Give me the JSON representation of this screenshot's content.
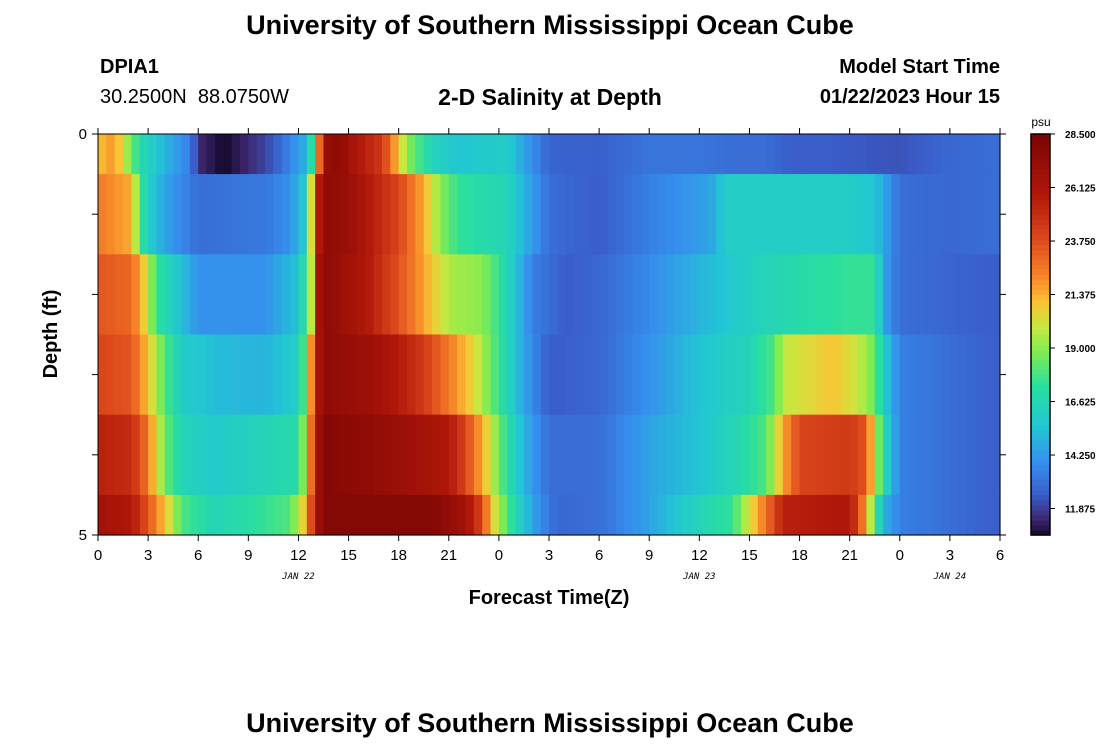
{
  "header": {
    "title": "University of Southern Mississippi Ocean Cube",
    "station_id": "DPIA1",
    "station_coords": "30.2500N  88.0750W",
    "plot_title": "2-D Salinity at Depth",
    "start_label": "Model Start Time",
    "start_value": "01/22/2023 Hour 15"
  },
  "footer": {
    "title": "University of Southern Mississippi Ocean Cube"
  },
  "chart_data": {
    "type": "heatmap",
    "title": "2-D Salinity at Depth",
    "xlabel": "Forecast Time(Z)",
    "ylabel": "Depth (ft)",
    "x_tick_labels": [
      "0",
      "3",
      "6",
      "9",
      "12",
      "15",
      "18",
      "21",
      "0",
      "3",
      "6",
      "9",
      "12",
      "15",
      "18",
      "21",
      "0",
      "3",
      "6"
    ],
    "date_labels": [
      {
        "label": "JAN 22",
        "at_hour": 12
      },
      {
        "label": "JAN 23",
        "at_hour": 36
      },
      {
        "label": "JAN 24",
        "at_hour": 51
      }
    ],
    "x_range_hours": [
      0,
      54
    ],
    "y_tick_labels": [
      "0",
      "5"
    ],
    "ylim": [
      0,
      5
    ],
    "depth_bands": [
      0.5,
      1.5,
      2.5,
      3.5,
      4.5,
      5.0
    ],
    "colorbar": {
      "unit": "psu",
      "min": 10.7,
      "max": 28.5,
      "tick_labels": [
        "28.500",
        "26.125",
        "23.750",
        "21.375",
        "19.000",
        "16.625",
        "14.250",
        "11.875"
      ],
      "tick_values": [
        28.5,
        26.125,
        23.75,
        21.375,
        19.0,
        16.625,
        14.25,
        11.875
      ]
    },
    "profiles": [
      {
        "depth_band": 1,
        "keys": [
          [
            0,
            21
          ],
          [
            1,
            22
          ],
          [
            1.5,
            20
          ],
          [
            2.5,
            17
          ],
          [
            4,
            15
          ],
          [
            5.5,
            13.5
          ],
          [
            6,
            11.5
          ],
          [
            7,
            11
          ],
          [
            7.5,
            10.7
          ],
          [
            8.5,
            11.2
          ],
          [
            10,
            12
          ],
          [
            11,
            13
          ],
          [
            12.5,
            15
          ],
          [
            13,
            19
          ],
          [
            13.5,
            27
          ],
          [
            14.5,
            27.5
          ],
          [
            15.5,
            26
          ],
          [
            17,
            24.5
          ],
          [
            18,
            21
          ],
          [
            18.5,
            19
          ],
          [
            20,
            16.5
          ],
          [
            21.5,
            15.5
          ],
          [
            23,
            15.8
          ],
          [
            24.5,
            16
          ],
          [
            25.5,
            14.5
          ],
          [
            27,
            12.7
          ],
          [
            30,
            12.6
          ],
          [
            33,
            13.2
          ],
          [
            36,
            13.2
          ],
          [
            38,
            13
          ],
          [
            40,
            13
          ],
          [
            41.5,
            12.5
          ],
          [
            44,
            12.5
          ],
          [
            48,
            12.3
          ],
          [
            51,
            12.8
          ],
          [
            54,
            13
          ]
        ]
      },
      {
        "depth_band": 2,
        "keys": [
          [
            0,
            22.5
          ],
          [
            2,
            21.5
          ],
          [
            2.5,
            18
          ],
          [
            3,
            16
          ],
          [
            4,
            14.5
          ],
          [
            6,
            13
          ],
          [
            10,
            13.3
          ],
          [
            11.5,
            14
          ],
          [
            12.5,
            16
          ],
          [
            13,
            24.5
          ],
          [
            13.5,
            27.5
          ],
          [
            15,
            27
          ],
          [
            18,
            24
          ],
          [
            19.5,
            21.5
          ],
          [
            20.5,
            19
          ],
          [
            21.5,
            17.5
          ],
          [
            23,
            17
          ],
          [
            24.5,
            16.5
          ],
          [
            25.5,
            15
          ],
          [
            27,
            13
          ],
          [
            30,
            12.5
          ],
          [
            33,
            13.5
          ],
          [
            36,
            14.3
          ],
          [
            37,
            14.8
          ],
          [
            37.5,
            16
          ],
          [
            41,
            16
          ],
          [
            45,
            16
          ],
          [
            46.5,
            15.5
          ],
          [
            48,
            13
          ],
          [
            51,
            12.8
          ],
          [
            54,
            13
          ]
        ]
      },
      {
        "depth_band": 3,
        "keys": [
          [
            0,
            23.5
          ],
          [
            2,
            23
          ],
          [
            3,
            20
          ],
          [
            3.5,
            17.5
          ],
          [
            4.5,
            16
          ],
          [
            6,
            14
          ],
          [
            10,
            14
          ],
          [
            12,
            15.5
          ],
          [
            12.7,
            19
          ],
          [
            13.2,
            26.5
          ],
          [
            13.7,
            27.5
          ],
          [
            16,
            26
          ],
          [
            18.5,
            23
          ],
          [
            20,
            21
          ],
          [
            21,
            19.5
          ],
          [
            23,
            19
          ],
          [
            24,
            17.5
          ],
          [
            25,
            15.5
          ],
          [
            26,
            13.5
          ],
          [
            28,
            12.5
          ],
          [
            30,
            12.8
          ],
          [
            33,
            13.8
          ],
          [
            36,
            15
          ],
          [
            40,
            16.5
          ],
          [
            42,
            17
          ],
          [
            45,
            17.5
          ],
          [
            46.5,
            17.5
          ],
          [
            47,
            14.5
          ],
          [
            48,
            13
          ],
          [
            54,
            12.5
          ]
        ]
      },
      {
        "depth_band": 4,
        "keys": [
          [
            0,
            24
          ],
          [
            2,
            23.5
          ],
          [
            3,
            21
          ],
          [
            4,
            18
          ],
          [
            5,
            16
          ],
          [
            7,
            15.2
          ],
          [
            10,
            15
          ],
          [
            12,
            16
          ],
          [
            12.6,
            20
          ],
          [
            13,
            25.5
          ],
          [
            13.5,
            27.5
          ],
          [
            17,
            26.5
          ],
          [
            19,
            25
          ],
          [
            21,
            22.5
          ],
          [
            22.5,
            20.5
          ],
          [
            23.5,
            18.5
          ],
          [
            24.5,
            16.5
          ],
          [
            25.5,
            14.5
          ],
          [
            27,
            12.5
          ],
          [
            30,
            12.8
          ],
          [
            33,
            14
          ],
          [
            36,
            15.5
          ],
          [
            39,
            16.5
          ],
          [
            40.5,
            18
          ],
          [
            41,
            19.8
          ],
          [
            44,
            21
          ],
          [
            45.5,
            20
          ],
          [
            46.5,
            18.5
          ],
          [
            47,
            16
          ],
          [
            48,
            13.5
          ],
          [
            54,
            12.5
          ]
        ]
      },
      {
        "depth_band": 5,
        "keys": [
          [
            0,
            25.5
          ],
          [
            2,
            25
          ],
          [
            3,
            22.5
          ],
          [
            4,
            18.5
          ],
          [
            5,
            16.5
          ],
          [
            7,
            15.8
          ],
          [
            10,
            16.5
          ],
          [
            12,
            17
          ],
          [
            12.6,
            21
          ],
          [
            13,
            26
          ],
          [
            13.5,
            28
          ],
          [
            18,
            27
          ],
          [
            21,
            26
          ],
          [
            22,
            24
          ],
          [
            23,
            21.5
          ],
          [
            24,
            18.5
          ],
          [
            25,
            16
          ],
          [
            26,
            14.2
          ],
          [
            27,
            13
          ],
          [
            30,
            13
          ],
          [
            33,
            14.5
          ],
          [
            36,
            15.5
          ],
          [
            38,
            16.5
          ],
          [
            40,
            18
          ],
          [
            41,
            21.5
          ],
          [
            42,
            24
          ],
          [
            45,
            24.5
          ],
          [
            46,
            23.5
          ],
          [
            46.5,
            20
          ],
          [
            47,
            17
          ],
          [
            48,
            13.5
          ],
          [
            54,
            12.5
          ]
        ]
      },
      {
        "depth_band": 6,
        "keys": [
          [
            0,
            26.5
          ],
          [
            2,
            26
          ],
          [
            3,
            23.5
          ],
          [
            4,
            21
          ],
          [
            5,
            18
          ],
          [
            7,
            16.5
          ],
          [
            10,
            17.5
          ],
          [
            11.5,
            18
          ],
          [
            12.5,
            21.5
          ],
          [
            13,
            26
          ],
          [
            13.5,
            28
          ],
          [
            20,
            28
          ],
          [
            22,
            26.5
          ],
          [
            23,
            24
          ],
          [
            23.5,
            21
          ],
          [
            24.5,
            18
          ],
          [
            25.5,
            15.5
          ],
          [
            26.5,
            13.8
          ],
          [
            27.5,
            12.8
          ],
          [
            30,
            13
          ],
          [
            33,
            14.5
          ],
          [
            36,
            16.5
          ],
          [
            38,
            17.5
          ],
          [
            38.5,
            19
          ],
          [
            39.5,
            21.5
          ],
          [
            40.5,
            24
          ],
          [
            41,
            25.5
          ],
          [
            45,
            26
          ],
          [
            45.5,
            24
          ],
          [
            46,
            21.5
          ],
          [
            46.5,
            18
          ],
          [
            47,
            15
          ],
          [
            48,
            13.5
          ],
          [
            54,
            12.5
          ]
        ]
      }
    ]
  }
}
